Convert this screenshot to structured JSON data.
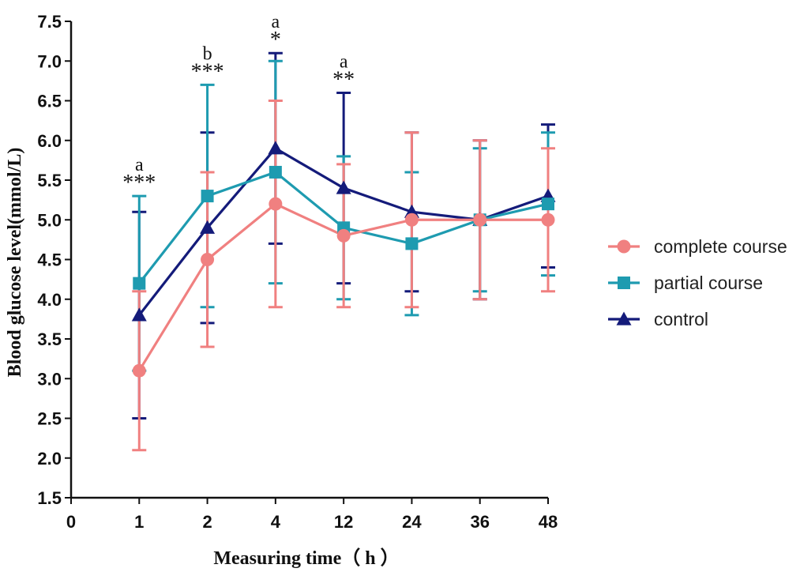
{
  "chart_data": {
    "type": "line",
    "xlabel": "Measuring time（ h ）",
    "ylabel": "Blood glucose  level(mmol/L)",
    "ylim": [
      1.5,
      7.5
    ],
    "yticks": [
      "1.5",
      "2.0",
      "2.5",
      "3.0",
      "3.5",
      "4.0",
      "4.5",
      "5.0",
      "5.5",
      "6.0",
      "6.5",
      "7.0",
      "7.5"
    ],
    "categories": [
      "0",
      "1",
      "2",
      "4",
      "12",
      "24",
      "36",
      "48"
    ],
    "grid": false,
    "legend_position": "right",
    "series": [
      {
        "name": "complete course",
        "color": "#F08080",
        "marker": "circle",
        "x": [
          "1",
          "2",
          "4",
          "12",
          "24",
          "36",
          "48"
        ],
        "values": [
          3.1,
          4.5,
          5.2,
          4.8,
          5.0,
          5.0,
          5.0
        ],
        "err_low": [
          2.1,
          3.4,
          3.9,
          3.9,
          3.9,
          4.0,
          4.1
        ],
        "err_high": [
          4.1,
          5.6,
          6.5,
          5.7,
          6.1,
          6.0,
          5.9
        ]
      },
      {
        "name": "partial course",
        "color": "#1E9BB0",
        "marker": "square",
        "x": [
          "1",
          "2",
          "4",
          "12",
          "24",
          "36",
          "48"
        ],
        "values": [
          4.2,
          5.3,
          5.6,
          4.9,
          4.7,
          5.0,
          5.2
        ],
        "err_low": [
          3.1,
          3.9,
          4.2,
          4.0,
          3.8,
          4.1,
          4.3
        ],
        "err_high": [
          5.3,
          6.7,
          7.0,
          5.8,
          5.6,
          5.9,
          6.1
        ]
      },
      {
        "name": "control",
        "color": "#141B7A",
        "marker": "triangle",
        "x": [
          "1",
          "2",
          "4",
          "12",
          "24",
          "36",
          "48"
        ],
        "values": [
          3.8,
          4.9,
          5.9,
          5.4,
          5.1,
          5.0,
          5.3
        ],
        "err_low": [
          2.5,
          3.7,
          4.7,
          4.2,
          4.1,
          4.0,
          4.4
        ],
        "err_high": [
          5.1,
          6.1,
          7.1,
          6.6,
          6.1,
          6.0,
          6.2
        ]
      }
    ],
    "annotations": [
      {
        "x": "1",
        "letter": "a",
        "stars": "***"
      },
      {
        "x": "2",
        "letter": "b",
        "stars": "***"
      },
      {
        "x": "4",
        "letter": "a",
        "stars": "*"
      },
      {
        "x": "12",
        "letter": "a",
        "stars": "**"
      }
    ]
  }
}
